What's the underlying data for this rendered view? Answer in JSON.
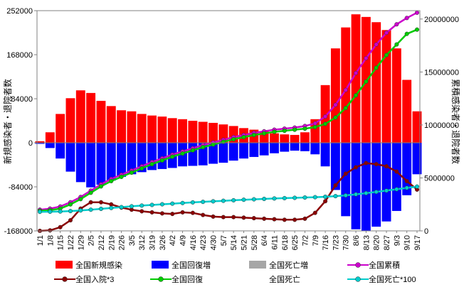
{
  "chart_data": {
    "type": "bar-line-combo",
    "left_axis": {
      "label": "新規感染者・退院者数",
      "ticks": [
        252000,
        168000,
        84000,
        0,
        -84000,
        -168000
      ],
      "tick_labels": [
        "252000",
        "168000",
        "84000",
        "0",
        "-84000",
        "-168000"
      ],
      "range": [
        -168000,
        252000
      ]
    },
    "right_axis": {
      "label": "累積感染者・退院者数",
      "ticks": [
        20000000,
        15000000,
        10000000,
        5000000,
        0
      ],
      "tick_labels": [
        "20000000",
        "15000000",
        "10000000",
        "5000000",
        "0"
      ],
      "range": [
        0,
        20790000
      ]
    },
    "x_tick_labels": [
      "1/1",
      "1/8",
      "1/15",
      "1/22",
      "1/29",
      "2/5",
      "2/12",
      "2/19",
      "2/26",
      "3/5",
      "3/12",
      "3/19",
      "3/26",
      "4/2",
      "4/9",
      "4/16",
      "4/23",
      "4/30",
      "5/7",
      "5/14",
      "5/21",
      "5/28",
      "6/4",
      "6/11",
      "6/18",
      "6/25",
      "7/2",
      "7/9",
      "7/16",
      "7/23",
      "7/30",
      "8/6",
      "8/13",
      "8/20",
      "8/27",
      "9/3",
      "9/10",
      "9/17"
    ],
    "grid": false,
    "legend_position": "bottom",
    "legend": [
      {
        "label": "全国新規感染",
        "kind": "bar",
        "color": "#ff0000"
      },
      {
        "label": "全国回復増",
        "kind": "bar",
        "color": "#0000ff"
      },
      {
        "label": "全国死亡増",
        "kind": "bar",
        "color": "#a6a6a6"
      },
      {
        "label": "全国累積",
        "kind": "line",
        "color": "#cc00cc"
      },
      {
        "label": "全国入院*3",
        "kind": "line",
        "color": "#8b0000"
      },
      {
        "label": "全国回復",
        "kind": "line",
        "color": "#00cc00"
      },
      {
        "label": "全国死亡",
        "kind": "text",
        "color": "#000000"
      },
      {
        "label": "全国死亡*100",
        "kind": "line",
        "color": "#00cccc"
      }
    ],
    "series": [
      {
        "name": "全国新規感染",
        "axis": "left",
        "kind": "bar",
        "x": [
          "1/1",
          "1/8",
          "1/15",
          "1/22",
          "1/29",
          "2/5",
          "2/12",
          "2/19",
          "2/26",
          "3/5",
          "3/12",
          "3/19",
          "3/26",
          "4/2",
          "4/9",
          "4/16",
          "4/23",
          "4/30",
          "5/7",
          "5/14",
          "5/21",
          "5/28",
          "6/4",
          "6/11",
          "6/18",
          "6/25",
          "7/2",
          "7/9",
          "7/16",
          "7/23",
          "7/30",
          "8/6",
          "8/13",
          "8/20",
          "8/27",
          "9/3",
          "9/10",
          "9/17"
        ],
        "values": [
          3000,
          20000,
          55000,
          85000,
          100000,
          95000,
          80000,
          70000,
          62000,
          60000,
          55000,
          52000,
          50000,
          47000,
          45000,
          42000,
          40000,
          38000,
          35000,
          32000,
          28000,
          25000,
          22000,
          18000,
          16000,
          15000,
          20000,
          45000,
          110000,
          180000,
          220000,
          245000,
          240000,
          230000,
          215000,
          180000,
          120000,
          60000
        ]
      },
      {
        "name": "全国回復増",
        "axis": "left",
        "kind": "bar",
        "x": [
          "1/1",
          "1/8",
          "1/15",
          "1/22",
          "1/29",
          "2/5",
          "2/12",
          "2/19",
          "2/26",
          "3/5",
          "3/12",
          "3/19",
          "3/26",
          "4/2",
          "4/9",
          "4/16",
          "4/23",
          "4/30",
          "5/7",
          "5/14",
          "5/21",
          "5/28",
          "6/4",
          "6/11",
          "6/18",
          "6/25",
          "7/2",
          "7/9",
          "7/16",
          "7/23",
          "7/30",
          "8/6",
          "8/13",
          "8/20",
          "8/27",
          "9/3",
          "9/10",
          "9/17"
        ],
        "values": [
          -2000,
          -10000,
          -30000,
          -55000,
          -75000,
          -85000,
          -80000,
          -72000,
          -65000,
          -60000,
          -56000,
          -52000,
          -50000,
          -48000,
          -45000,
          -44000,
          -43000,
          -40000,
          -38000,
          -34000,
          -30000,
          -27000,
          -24000,
          -20000,
          -17000,
          -15000,
          -16000,
          -22000,
          -45000,
          -90000,
          -140000,
          -165000,
          -168000,
          -160000,
          -150000,
          -130000,
          -100000,
          -60000
        ]
      },
      {
        "name": "全国累積",
        "axis": "right",
        "kind": "line",
        "x": [
          "1/1",
          "1/8",
          "1/15",
          "1/22",
          "1/29",
          "2/5",
          "2/12",
          "2/19",
          "2/26",
          "3/5",
          "3/12",
          "3/19",
          "3/26",
          "4/2",
          "4/9",
          "4/16",
          "4/23",
          "4/30",
          "5/7",
          "5/14",
          "5/21",
          "5/28",
          "6/4",
          "6/11",
          "6/18",
          "6/25",
          "7/2",
          "7/9",
          "7/16",
          "7/23",
          "7/30",
          "8/6",
          "8/13",
          "8/20",
          "8/27",
          "9/3",
          "9/10",
          "9/17"
        ],
        "values": [
          2000000,
          2100000,
          2300000,
          2700000,
          3200000,
          3800000,
          4400000,
          4900000,
          5300000,
          5700000,
          6100000,
          6500000,
          6850000,
          7200000,
          7500000,
          7800000,
          8100000,
          8350000,
          8600000,
          8850000,
          9050000,
          9250000,
          9400000,
          9550000,
          9650000,
          9750000,
          9900000,
          10150000,
          10800000,
          11900000,
          13300000,
          14900000,
          16300000,
          17600000,
          18700000,
          19500000,
          20100000,
          20600000
        ]
      },
      {
        "name": "全国回復",
        "axis": "right",
        "kind": "line",
        "x": [
          "1/1",
          "1/8",
          "1/15",
          "1/22",
          "1/29",
          "2/5",
          "2/12",
          "2/19",
          "2/26",
          "3/5",
          "3/12",
          "3/19",
          "3/26",
          "4/2",
          "4/9",
          "4/16",
          "4/23",
          "4/30",
          "5/7",
          "5/14",
          "5/21",
          "5/28",
          "6/4",
          "6/11",
          "6/18",
          "6/25",
          "7/2",
          "7/9",
          "7/16",
          "7/23",
          "7/30",
          "8/6",
          "8/13",
          "8/20",
          "8/27",
          "9/3",
          "9/10",
          "9/17"
        ],
        "values": [
          1900000,
          1950000,
          2100000,
          2500000,
          3000000,
          3600000,
          4200000,
          4700000,
          5100000,
          5500000,
          5900000,
          6300000,
          6650000,
          7000000,
          7300000,
          7600000,
          7900000,
          8150000,
          8400000,
          8650000,
          8850000,
          9050000,
          9200000,
          9350000,
          9450000,
          9550000,
          9650000,
          9800000,
          10100000,
          10700000,
          11600000,
          12800000,
          14100000,
          15400000,
          16600000,
          17600000,
          18600000,
          19000000
        ]
      },
      {
        "name": "全国入院*3",
        "axis": "right",
        "kind": "line",
        "x": [
          "1/1",
          "1/8",
          "1/15",
          "1/22",
          "1/29",
          "2/5",
          "2/12",
          "2/19",
          "2/26",
          "3/5",
          "3/12",
          "3/19",
          "3/26",
          "4/2",
          "4/9",
          "4/16",
          "4/23",
          "4/30",
          "5/7",
          "5/14",
          "5/21",
          "5/28",
          "6/4",
          "6/11",
          "6/18",
          "6/25",
          "7/2",
          "7/9",
          "7/16",
          "7/23",
          "7/30",
          "8/6",
          "8/13",
          "8/20",
          "8/27",
          "9/3",
          "9/10",
          "9/17"
        ],
        "values": [
          0,
          50000,
          350000,
          1000000,
          2100000,
          2700000,
          2700000,
          2500000,
          2200000,
          2000000,
          1850000,
          1750000,
          1650000,
          1600000,
          1750000,
          1700000,
          1500000,
          1350000,
          1300000,
          1300000,
          1250000,
          1200000,
          1150000,
          1100000,
          1050000,
          1050000,
          1150000,
          1700000,
          2800000,
          4300000,
          5400000,
          6000000,
          6400000,
          6300000,
          6100000,
          5600000,
          4700000,
          3900000
        ]
      },
      {
        "name": "全国死亡*100",
        "axis": "right",
        "kind": "line",
        "x": [
          "1/1",
          "1/8",
          "1/15",
          "1/22",
          "1/29",
          "2/5",
          "2/12",
          "2/19",
          "2/26",
          "3/5",
          "3/12",
          "3/19",
          "3/26",
          "4/2",
          "4/9",
          "4/16",
          "4/23",
          "4/30",
          "5/7",
          "5/14",
          "5/21",
          "5/28",
          "6/4",
          "6/11",
          "6/18",
          "6/25",
          "7/2",
          "7/9",
          "7/16",
          "7/23",
          "7/30",
          "8/6",
          "8/13",
          "8/20",
          "8/27",
          "9/3",
          "9/10",
          "9/17"
        ],
        "values": [
          1800000,
          1810000,
          1830000,
          1870000,
          1930000,
          2000000,
          2080000,
          2160000,
          2240000,
          2320000,
          2390000,
          2450000,
          2510000,
          2570000,
          2630000,
          2690000,
          2740000,
          2790000,
          2840000,
          2890000,
          2940000,
          2980000,
          3020000,
          3060000,
          3090000,
          3120000,
          3150000,
          3180000,
          3220000,
          3280000,
          3350000,
          3450000,
          3560000,
          3680000,
          3800000,
          3930000,
          4060000,
          4180000
        ]
      }
    ]
  }
}
